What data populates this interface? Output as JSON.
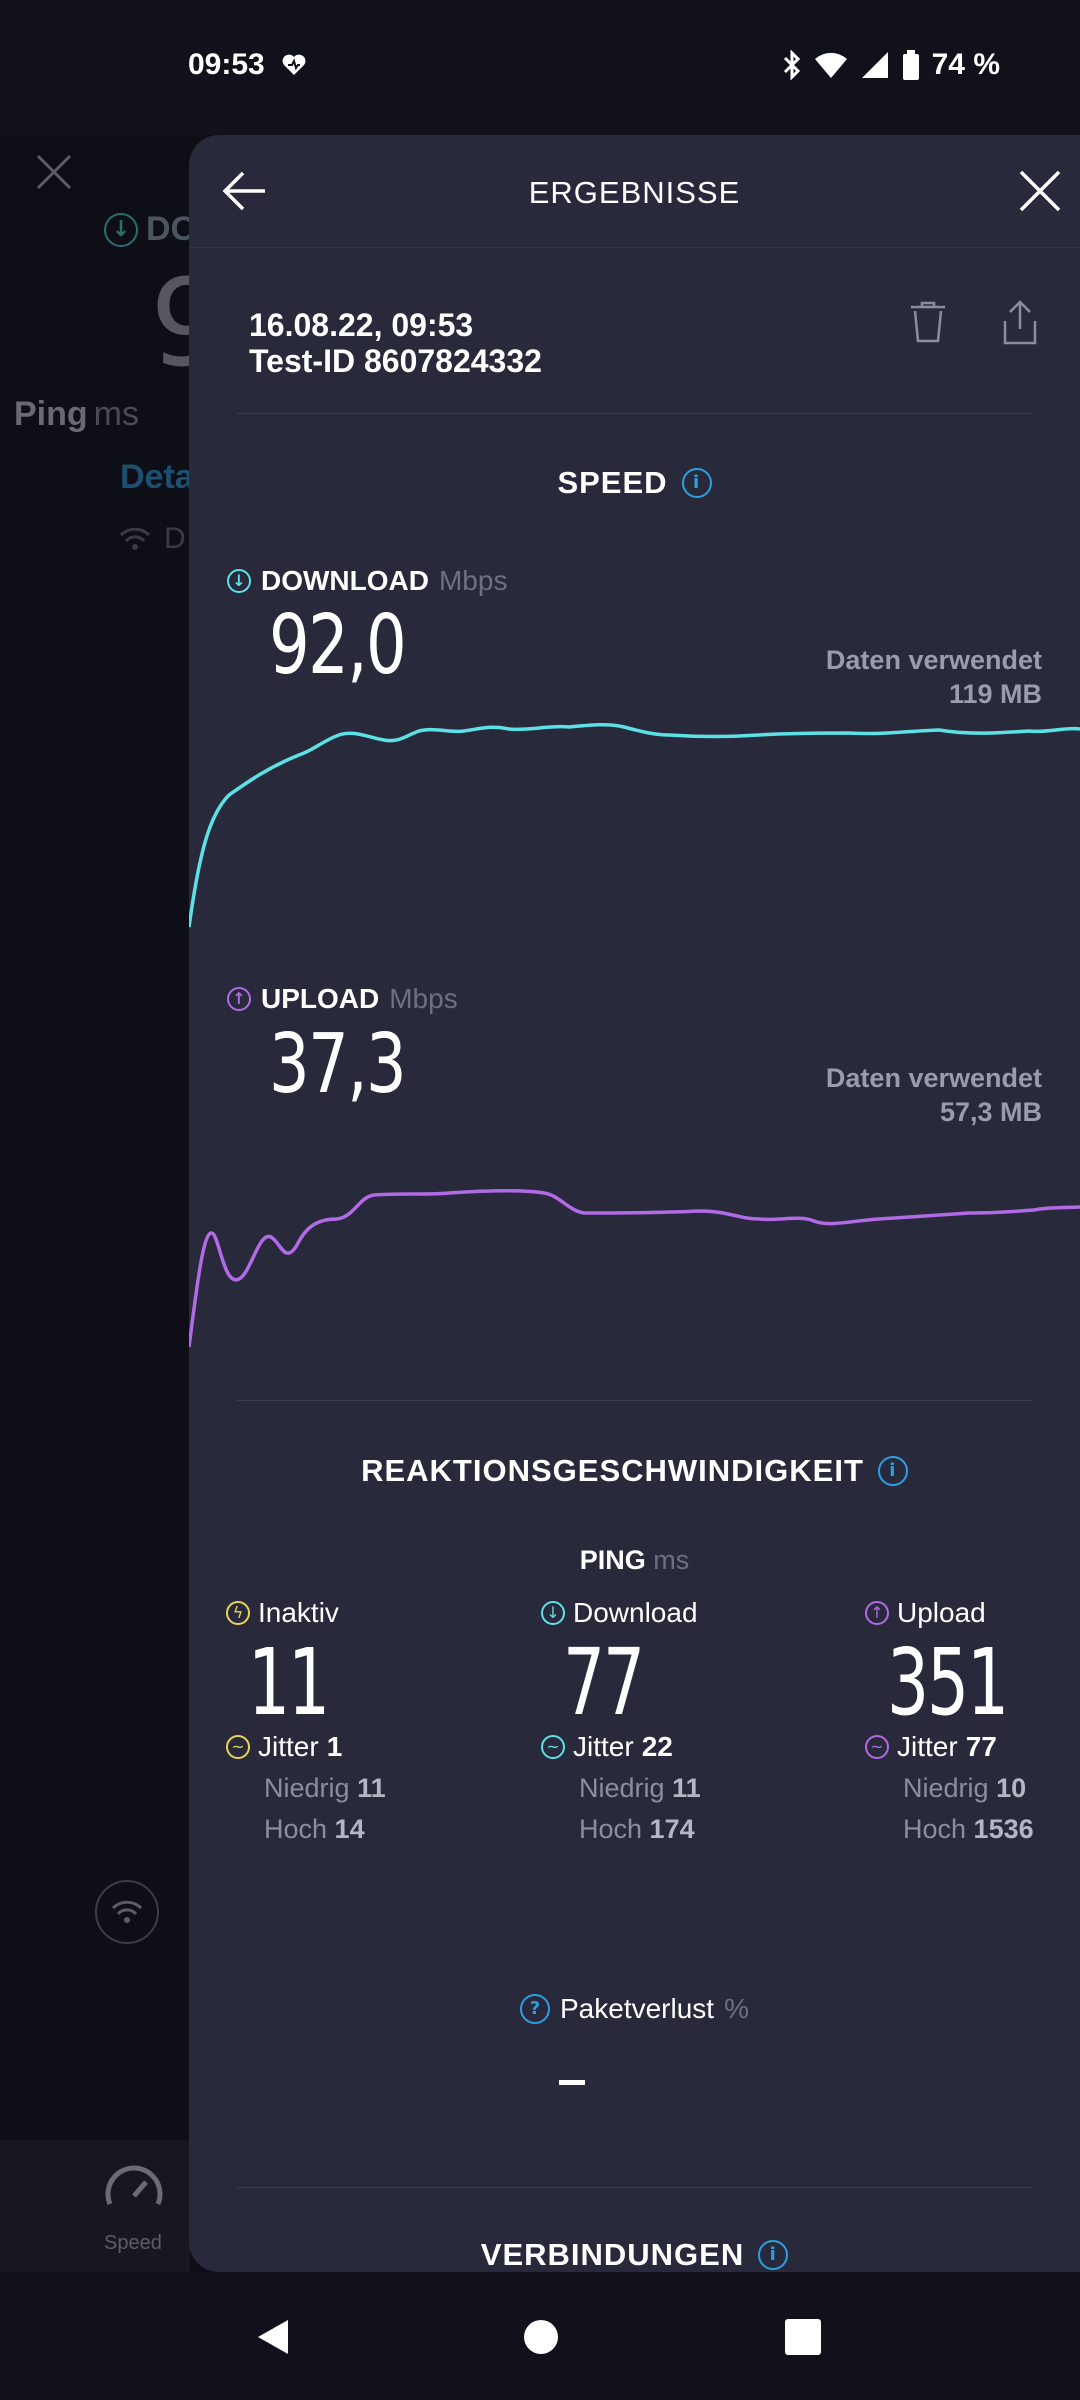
{
  "status_bar": {
    "time": "09:53",
    "battery": "74 %"
  },
  "background": {
    "download_label": "DO",
    "download_value": "9",
    "ping_label": "Ping",
    "ping_unit": "ms",
    "details_label": "Deta",
    "connection_label": "D",
    "nav_speed_label": "Speed"
  },
  "panel": {
    "title": "ERGEBNISSE",
    "date": "16.08.22, 09:53",
    "test_id": "Test-ID 8607824332"
  },
  "speed": {
    "title": "SPEED",
    "download": {
      "label": "DOWNLOAD",
      "unit": "Mbps",
      "value": "92,0",
      "used_label": "Daten verwendet",
      "used_value": "119 MB",
      "color": "#5ce1e6"
    },
    "upload": {
      "label": "UPLOAD",
      "unit": "Mbps",
      "value": "37,3",
      "used_label": "Daten verwendet",
      "used_value": "57,3 MB",
      "color": "#b26ae6"
    }
  },
  "responsiveness": {
    "title": "REAKTIONSGESCHWINDIGKEIT",
    "ping_label": "PING",
    "ping_unit": "ms",
    "columns": [
      {
        "label": "Inaktiv",
        "value": "11",
        "jitter_label": "Jitter",
        "jitter": "1",
        "low_label": "Niedrig",
        "low": "11",
        "high_label": "Hoch",
        "high": "14",
        "color": "#e8d45a"
      },
      {
        "label": "Download",
        "value": "77",
        "jitter_label": "Jitter",
        "jitter": "22",
        "low_label": "Niedrig",
        "low": "11",
        "high_label": "Hoch",
        "high": "174",
        "color": "#5ce1e6"
      },
      {
        "label": "Upload",
        "value": "351",
        "jitter_label": "Jitter",
        "jitter": "77",
        "low_label": "Niedrig",
        "low": "10",
        "high_label": "Hoch",
        "high": "1536",
        "color": "#b26ae6"
      }
    ],
    "packet_loss_label": "Paketverlust",
    "packet_loss_unit": "%",
    "packet_loss_value": "–"
  },
  "connections": {
    "title": "VERBINDUNGEN"
  }
}
